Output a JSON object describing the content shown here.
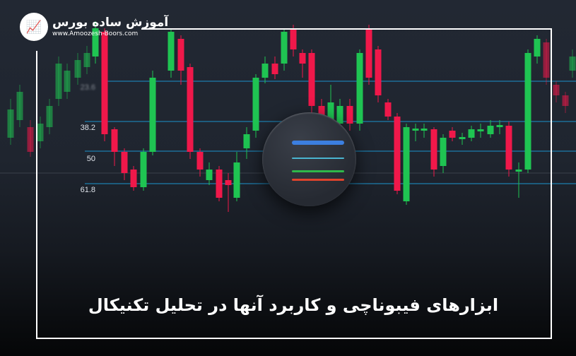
{
  "logo": {
    "name": "آموزش ساده بورس",
    "url": "www.Amoozesh-Boors.com"
  },
  "fib_levels": [
    "23.6",
    "38.2",
    "50",
    "61.8"
  ],
  "title": "ابزارهای فیبوناچی و کاربرد آنها در تحلیل تکنیکال",
  "colors": {
    "bullish": "#1fc452",
    "bearish": "#f0184a",
    "fib_line": "#1d6f98",
    "menu_blue": "#3c7fe0",
    "menu_cyan": "#4ab5d0",
    "menu_green": "#2fb84a",
    "menu_red": "#e0432c"
  },
  "icons": {
    "logo": "globe-chart-icon",
    "center": "menu-lines-icon"
  }
}
